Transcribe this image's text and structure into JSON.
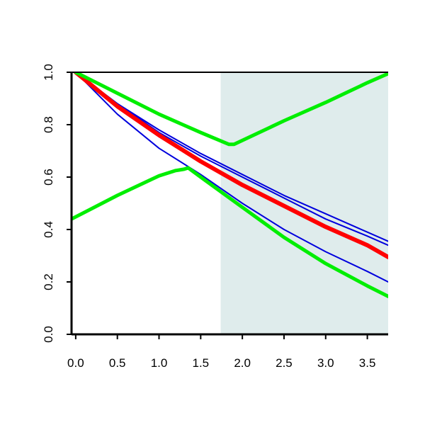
{
  "chart_data": {
    "type": "line",
    "title": "",
    "xlabel": "",
    "ylabel": "",
    "xlim": [
      -0.05,
      3.75
    ],
    "ylim": [
      0,
      1
    ],
    "x_ticks": [
      "0.0",
      "0.5",
      "1.0",
      "1.5",
      "2.0",
      "2.5",
      "3.0",
      "3.5"
    ],
    "y_ticks": [
      "0.0",
      "0.2",
      "0.4",
      "0.6",
      "0.8",
      "1.0"
    ],
    "grid": false,
    "legend": "none",
    "shaded_region": {
      "x_start": 1.74,
      "x_end": 3.75,
      "color": "#dfecec"
    },
    "colors": {
      "estimate": "#ff0000",
      "curves": "#0000dd",
      "band": "#00ee00"
    },
    "series": [
      {
        "role": "estimate",
        "color": "#ff0000",
        "points": [
          [
            0,
            1
          ],
          [
            0.5,
            0.87
          ],
          [
            1,
            0.76
          ],
          [
            1.5,
            0.66
          ],
          [
            2,
            0.57
          ],
          [
            2.5,
            0.49
          ],
          [
            3,
            0.41
          ],
          [
            3.5,
            0.34
          ],
          [
            3.75,
            0.295
          ]
        ]
      },
      {
        "role": "curve",
        "color": "#0000dd",
        "points": [
          [
            0,
            1
          ],
          [
            0.5,
            0.88
          ],
          [
            1,
            0.78
          ],
          [
            1.5,
            0.69
          ],
          [
            2,
            0.61
          ],
          [
            2.5,
            0.53
          ],
          [
            3,
            0.46
          ],
          [
            3.5,
            0.39
          ],
          [
            3.75,
            0.355
          ]
        ]
      },
      {
        "role": "curve",
        "color": "#0000dd",
        "points": [
          [
            0,
            1
          ],
          [
            0.5,
            0.88
          ],
          [
            1,
            0.77
          ],
          [
            1.5,
            0.68
          ],
          [
            2,
            0.6
          ],
          [
            2.5,
            0.52
          ],
          [
            3,
            0.44
          ],
          [
            3.5,
            0.375
          ],
          [
            3.75,
            0.34
          ]
        ]
      },
      {
        "role": "curve",
        "color": "#0000dd",
        "points": [
          [
            0,
            1
          ],
          [
            0.5,
            0.84
          ],
          [
            1,
            0.71
          ],
          [
            1.5,
            0.61
          ],
          [
            2,
            0.5
          ],
          [
            2.5,
            0.4
          ],
          [
            3,
            0.315
          ],
          [
            3.5,
            0.24
          ],
          [
            3.75,
            0.2
          ]
        ]
      },
      {
        "role": "band-upper",
        "color": "#00ee00",
        "points": [
          [
            0,
            1
          ],
          [
            0.5,
            0.92
          ],
          [
            1,
            0.84
          ],
          [
            1.5,
            0.77
          ],
          [
            1.84,
            0.725
          ],
          [
            1.9,
            0.725
          ],
          [
            2.5,
            0.815
          ],
          [
            3,
            0.885
          ],
          [
            3.5,
            0.96
          ],
          [
            3.75,
            0.995
          ]
        ]
      },
      {
        "role": "band-lower",
        "color": "#00ee00",
        "points": [
          [
            -0.05,
            0.44
          ],
          [
            0.5,
            0.53
          ],
          [
            1,
            0.605
          ],
          [
            1.2,
            0.625
          ],
          [
            1.3,
            0.63
          ],
          [
            1.35,
            0.635
          ],
          [
            1.5,
            0.6
          ],
          [
            2,
            0.485
          ],
          [
            2.5,
            0.37
          ],
          [
            3,
            0.27
          ],
          [
            3.5,
            0.185
          ],
          [
            3.75,
            0.145
          ]
        ]
      }
    ]
  }
}
